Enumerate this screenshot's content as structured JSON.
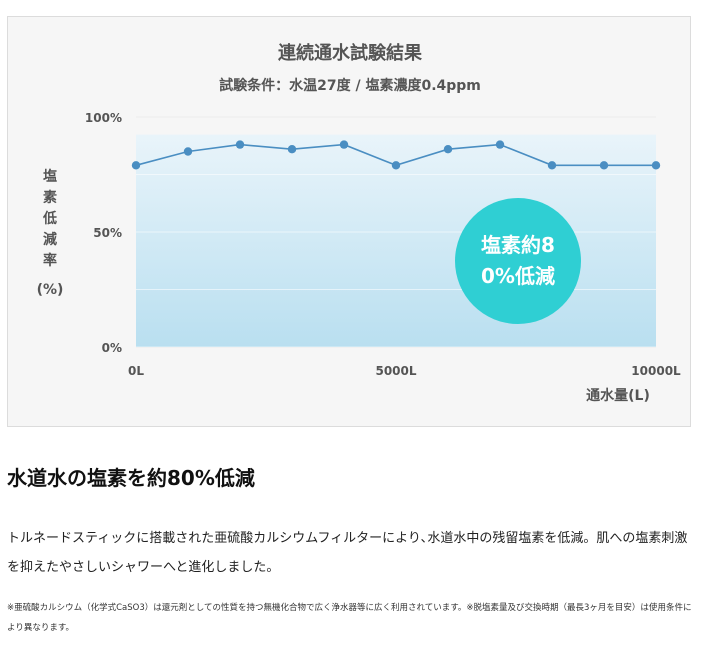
{
  "chart_data": {
    "type": "line",
    "title": "連続通水試験結果",
    "subtitle": "試験条件：水温27度 / 塩素濃度0.4ppm",
    "ylabel": "塩素低減率",
    "ylabel_unit": "(%)",
    "xlabel": "通水量(L)",
    "x": [
      0,
      1000,
      2000,
      3000,
      4000,
      5000,
      6000,
      7000,
      8000,
      9000,
      10000
    ],
    "values": [
      79,
      85,
      88,
      86,
      88,
      79,
      86,
      88,
      79,
      79,
      79
    ],
    "ylim": [
      0,
      100
    ],
    "xlim": [
      0,
      10000
    ],
    "yticks": [
      "0%",
      "50%",
      "100%"
    ],
    "xticks": [
      "0L",
      "5000L",
      "10000L"
    ],
    "series_color": "#4a8ec2",
    "fill_top_color": "#e9f4fa",
    "fill_bottom_color": "#b9dff0",
    "annotation": "塩素約80%低減",
    "annotation_color": "#2fcfd3"
  },
  "headline": "水道水の塩素を約80%低減",
  "body": "トルネードスティックに搭載された亜硫酸カルシウムフィルターにより､水道水中の残留塩素を低減。肌への塩素刺激を抑えたやさしいシャワーへと進化しました。",
  "footnote": "※亜硫酸カルシウム（化学式CaSO3）は還元剤としての性質を持つ無機化合物で広く浄水器等に広く利用されています。※脱塩素量及び交換時期（最長3ヶ月を目安）は使用条件により異なります。"
}
